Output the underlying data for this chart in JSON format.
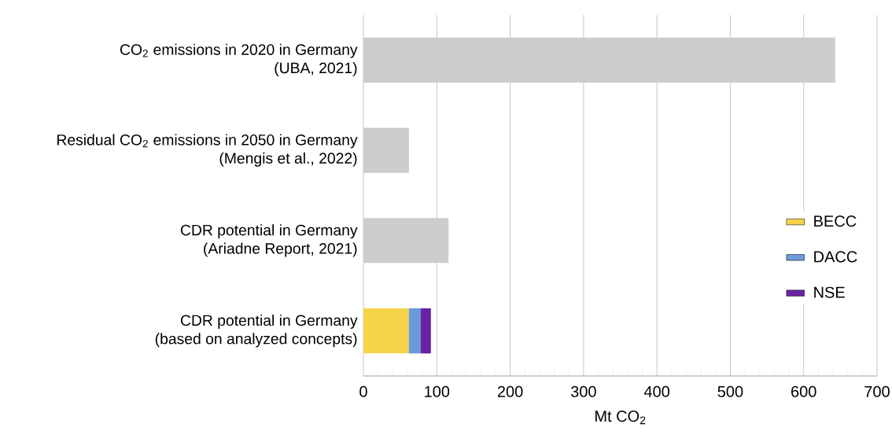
{
  "chart_data": {
    "type": "bar",
    "orientation": "horizontal",
    "stacked": true,
    "categories": [
      "CO$_{2}$ emissions in 2020 in Germany\n(UBA, 2021)",
      "Residual CO$_{2}$ emissions in 2050 in Germany\n(Mengis et al., 2022)",
      "CDR potential in Germany\n(Ariadne Report, 2021)",
      "CDR potential in Germany\n(based on analyzed concepts)"
    ],
    "series": [
      {
        "color": "#cccccc",
        "values": [
          643,
          62,
          116,
          null
        ]
      },
      {
        "name": "BECC",
        "color": "#f5d44b",
        "values": [
          null,
          null,
          null,
          62
        ]
      },
      {
        "name": "DACC",
        "color": "#6a9bd8",
        "values": [
          null,
          null,
          null,
          16
        ]
      },
      {
        "name": "NSE",
        "color": "#6a23a6",
        "values": [
          null,
          null,
          null,
          14
        ]
      }
    ],
    "xlabel": "Mt CO$_{2}$",
    "xlim": [
      0,
      700
    ],
    "xticks": [
      0,
      100,
      200,
      300,
      400,
      500,
      600,
      700
    ],
    "grid": "x",
    "legend": "bottom right"
  }
}
